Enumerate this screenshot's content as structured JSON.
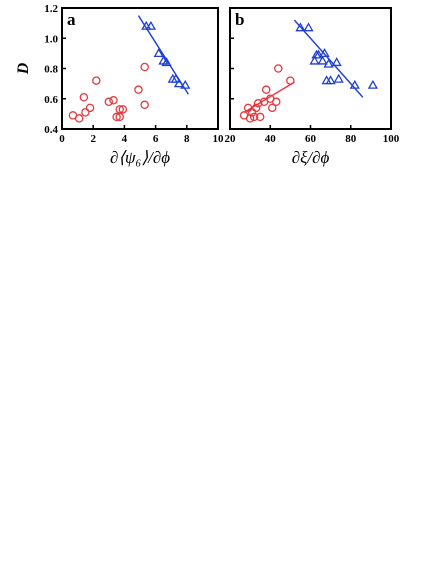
{
  "chart_data": [
    {
      "type": "scatter",
      "panel_label": "a",
      "ylabel": "D",
      "xlabel": "∂⟨ψ₆⟩/∂ϕ",
      "xlim": [
        0,
        10
      ],
      "ylim": [
        0.4,
        1.2
      ],
      "x_ticks": [
        0,
        2,
        4,
        6,
        8,
        10
      ],
      "y_ticks": [
        0.4,
        0.6,
        0.8,
        1.0,
        1.2
      ],
      "x_tick_labels": [
        "0",
        "2",
        "4",
        "6",
        "8",
        "10"
      ],
      "y_tick_labels": [
        "0.4",
        "0.6",
        "0.8",
        "1.0",
        "1.2"
      ],
      "grid": false,
      "series": [
        {
          "marker": "circle",
          "color": "#e8373e",
          "points": [
            [
              0.7,
              0.49
            ],
            [
              1.1,
              0.47
            ],
            [
              1.4,
              0.61
            ],
            [
              1.5,
              0.51
            ],
            [
              1.8,
              0.54
            ],
            [
              2.2,
              0.72
            ],
            [
              3.0,
              0.58
            ],
            [
              3.3,
              0.59
            ],
            [
              3.5,
              0.48
            ],
            [
              3.7,
              0.48
            ],
            [
              3.7,
              0.53
            ],
            [
              3.9,
              0.53
            ],
            [
              4.9,
              0.66
            ],
            [
              5.3,
              0.56
            ],
            [
              5.3,
              0.81
            ]
          ]
        },
        {
          "marker": "triangle",
          "color": "#1f3fd6",
          "points": [
            [
              5.4,
              1.08
            ],
            [
              5.7,
              1.08
            ],
            [
              6.2,
              0.9
            ],
            [
              6.5,
              0.85
            ],
            [
              6.7,
              0.84
            ],
            [
              7.1,
              0.73
            ],
            [
              7.3,
              0.73
            ],
            [
              7.5,
              0.7
            ],
            [
              7.9,
              0.69
            ]
          ],
          "fit_line": [
            [
              4.9,
              1.15
            ],
            [
              8.1,
              0.63
            ]
          ]
        }
      ]
    },
    {
      "type": "scatter",
      "panel_label": "b",
      "ylabel": "",
      "xlabel": "∂ξ/∂ϕ",
      "xlim": [
        20,
        100
      ],
      "ylim": [
        0.4,
        1.2
      ],
      "x_ticks": [
        20,
        40,
        60,
        80,
        100
      ],
      "y_ticks": [
        0.4,
        0.6,
        0.8,
        1.0,
        1.2
      ],
      "x_tick_labels": [
        "20",
        "40",
        "60",
        "80",
        "100"
      ],
      "y_tick_labels": [],
      "grid": false,
      "series": [
        {
          "marker": "circle",
          "color": "#e8373e",
          "points": [
            [
              27,
              0.49
            ],
            [
              29,
              0.54
            ],
            [
              30,
              0.47
            ],
            [
              31,
              0.51
            ],
            [
              32,
              0.48
            ],
            [
              33,
              0.54
            ],
            [
              34,
              0.57
            ],
            [
              35,
              0.48
            ],
            [
              37,
              0.58
            ],
            [
              38,
              0.66
            ],
            [
              40,
              0.6
            ],
            [
              41,
              0.54
            ],
            [
              43,
              0.58
            ],
            [
              44,
              0.8
            ],
            [
              50,
              0.72
            ]
          ],
          "fit_line": [
            [
              27,
              0.51
            ],
            [
              52,
              0.71
            ]
          ]
        },
        {
          "marker": "triangle",
          "color": "#1f3fd6",
          "points": [
            [
              55,
              1.07
            ],
            [
              59,
              1.07
            ],
            [
              62,
              0.85
            ],
            [
              63,
              0.89
            ],
            [
              64,
              0.89
            ],
            [
              66,
              0.85
            ],
            [
              67,
              0.9
            ],
            [
              68,
              0.72
            ],
            [
              69,
              0.83
            ],
            [
              70,
              0.72
            ],
            [
              73,
              0.84
            ],
            [
              74,
              0.73
            ],
            [
              82,
              0.69
            ],
            [
              91,
              0.69
            ]
          ],
          "fit_line": [
            [
              52,
              1.12
            ],
            [
              86,
              0.61
            ]
          ]
        }
      ]
    }
  ]
}
